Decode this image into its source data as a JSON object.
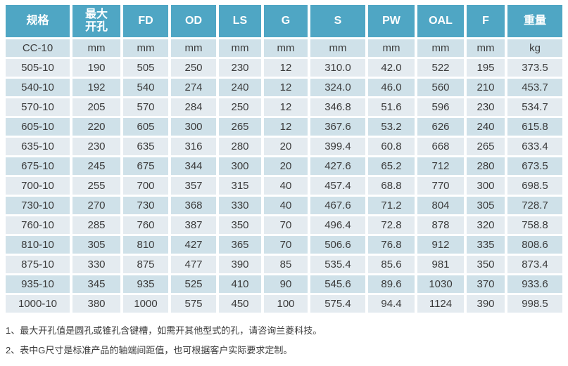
{
  "table": {
    "columns": [
      "规格",
      "最大\n开孔",
      "FD",
      "OD",
      "LS",
      "G",
      "S",
      "PW",
      "OAL",
      "F",
      "重量"
    ],
    "units": [
      "CC-10",
      "mm",
      "mm",
      "mm",
      "mm",
      "mm",
      "mm",
      "mm",
      "mm",
      "mm",
      "kg"
    ],
    "rows": [
      [
        "505-10",
        "190",
        "505",
        "250",
        "230",
        "12",
        "310.0",
        "42.0",
        "522",
        "195",
        "373.5"
      ],
      [
        "540-10",
        "192",
        "540",
        "274",
        "240",
        "12",
        "324.0",
        "46.0",
        "560",
        "210",
        "453.7"
      ],
      [
        "570-10",
        "205",
        "570",
        "284",
        "250",
        "12",
        "346.8",
        "51.6",
        "596",
        "230",
        "534.7"
      ],
      [
        "605-10",
        "220",
        "605",
        "300",
        "265",
        "12",
        "367.6",
        "53.2",
        "626",
        "240",
        "615.8"
      ],
      [
        "635-10",
        "230",
        "635",
        "316",
        "280",
        "20",
        "399.4",
        "60.8",
        "668",
        "265",
        "633.4"
      ],
      [
        "675-10",
        "245",
        "675",
        "344",
        "300",
        "20",
        "427.6",
        "65.2",
        "712",
        "280",
        "673.5"
      ],
      [
        "700-10",
        "255",
        "700",
        "357",
        "315",
        "40",
        "457.4",
        "68.8",
        "770",
        "300",
        "698.5"
      ],
      [
        "730-10",
        "270",
        "730",
        "368",
        "330",
        "40",
        "467.6",
        "71.2",
        "804",
        "305",
        "728.7"
      ],
      [
        "760-10",
        "285",
        "760",
        "387",
        "350",
        "70",
        "496.4",
        "72.8",
        "878",
        "320",
        "758.8"
      ],
      [
        "810-10",
        "305",
        "810",
        "427",
        "365",
        "70",
        "506.6",
        "76.8",
        "912",
        "335",
        "808.6"
      ],
      [
        "875-10",
        "330",
        "875",
        "477",
        "390",
        "85",
        "535.4",
        "85.6",
        "981",
        "350",
        "873.4"
      ],
      [
        "935-10",
        "345",
        "935",
        "525",
        "410",
        "90",
        "545.6",
        "89.6",
        "1030",
        "370",
        "933.6"
      ],
      [
        "1000-10",
        "380",
        "1000",
        "575",
        "450",
        "100",
        "575.4",
        "94.4",
        "1124",
        "390",
        "998.5"
      ]
    ]
  },
  "notes": [
    "1、最大开孔值是圆孔或锥孔含键槽，如需开其他型式的孔，请咨询兰菱科技。",
    "2、表中G尺寸是标准产品的轴端间距值，也可根据客户实际要求定制。"
  ],
  "colors": {
    "header_bg": "#4fa6c4",
    "header_text": "#ffffff",
    "row_light": "#e4ebf0",
    "row_dark": "#cfe1e9",
    "body_text": "#3b3b3b"
  }
}
